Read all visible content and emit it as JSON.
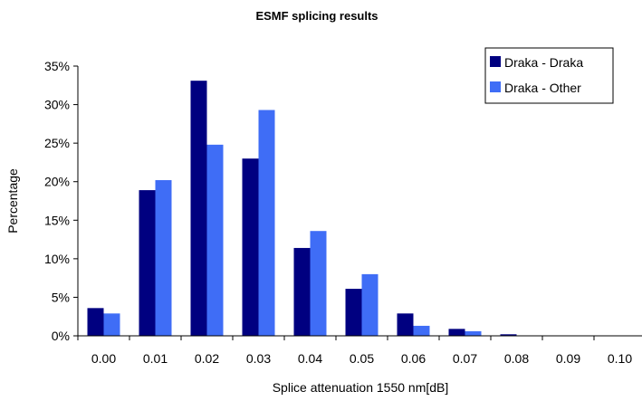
{
  "chart_data": {
    "type": "bar",
    "title": "ESMF splicing results",
    "xlabel": "Splice attenuation 1550 nm[dB]",
    "ylabel": "Percentage",
    "ylim": [
      0,
      35
    ],
    "yticks": [
      "0%",
      "5%",
      "10%",
      "15%",
      "20%",
      "25%",
      "30%",
      "35%"
    ],
    "categories": [
      "0.00",
      "0.01",
      "0.02",
      "0.03",
      "0.04",
      "0.05",
      "0.06",
      "0.07",
      "0.08",
      "0.09",
      "0.10"
    ],
    "series": [
      {
        "name": "Draka - Draka",
        "color": "#000080",
        "values": [
          3.6,
          18.9,
          33.1,
          23.0,
          11.4,
          6.1,
          2.9,
          0.9,
          0.2,
          0,
          0
        ]
      },
      {
        "name": "Draka - Other",
        "color": "#3f6df6",
        "values": [
          2.9,
          20.2,
          24.8,
          29.3,
          13.6,
          8.0,
          1.3,
          0.6,
          0,
          0,
          0
        ]
      }
    ],
    "grid": false,
    "legend": "top-right"
  }
}
